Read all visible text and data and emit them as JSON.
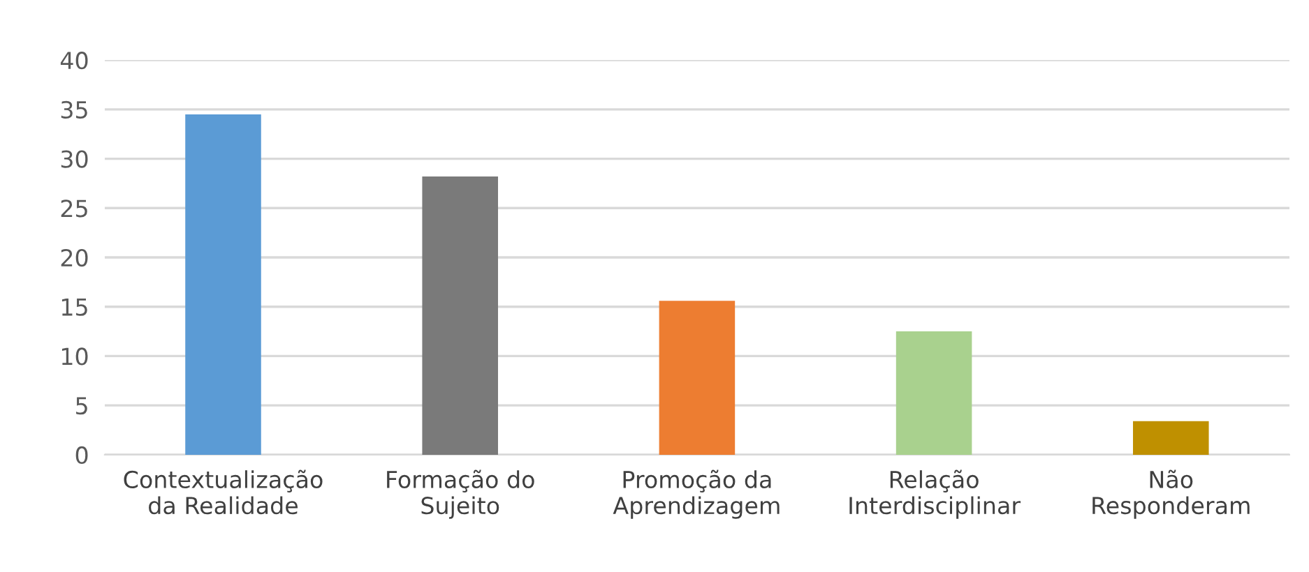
{
  "chart_data": {
    "type": "bar",
    "categories": [
      "Contextualização\nda Realidade",
      "Formação do\nSujeito",
      "Promoção da\nAprendizagem",
      "Relação\nInterdisciplinar",
      "Não\nResponderam"
    ],
    "values": [
      34.5,
      28.2,
      15.6,
      12.5,
      3.4
    ],
    "colors": [
      "#5b9bd5",
      "#7a7a7a",
      "#ed7d31",
      "#a9d18e",
      "#bf9000"
    ],
    "ylim": [
      0,
      40
    ],
    "yticks": [
      0,
      5,
      10,
      15,
      20,
      25,
      30,
      35,
      40
    ],
    "grid": "y",
    "legend": false
  }
}
